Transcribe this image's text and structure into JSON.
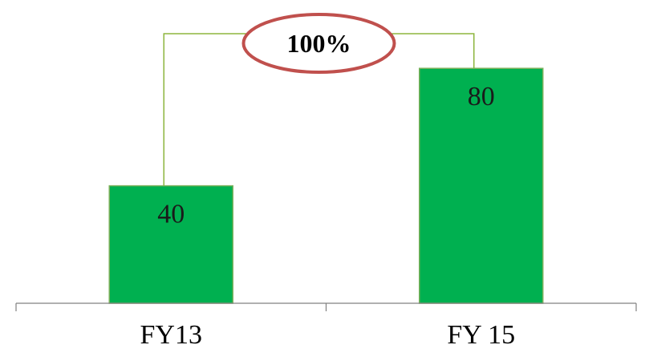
{
  "chart_data": {
    "type": "bar",
    "categories": [
      "FY13",
      "FY 15"
    ],
    "values": [
      40,
      80
    ],
    "data_labels": [
      "40",
      "80"
    ],
    "ylim": [
      0,
      100
    ],
    "grid": false,
    "legend": "none",
    "annotation": {
      "text": "100%",
      "from_category": "FY13",
      "to_category": "FY 15"
    },
    "colors": {
      "bar": "#00b050",
      "bar_border": "#7ab05a",
      "connector": "#8db53e",
      "callout_ring": "#c0504d",
      "axis": "#808080"
    }
  }
}
